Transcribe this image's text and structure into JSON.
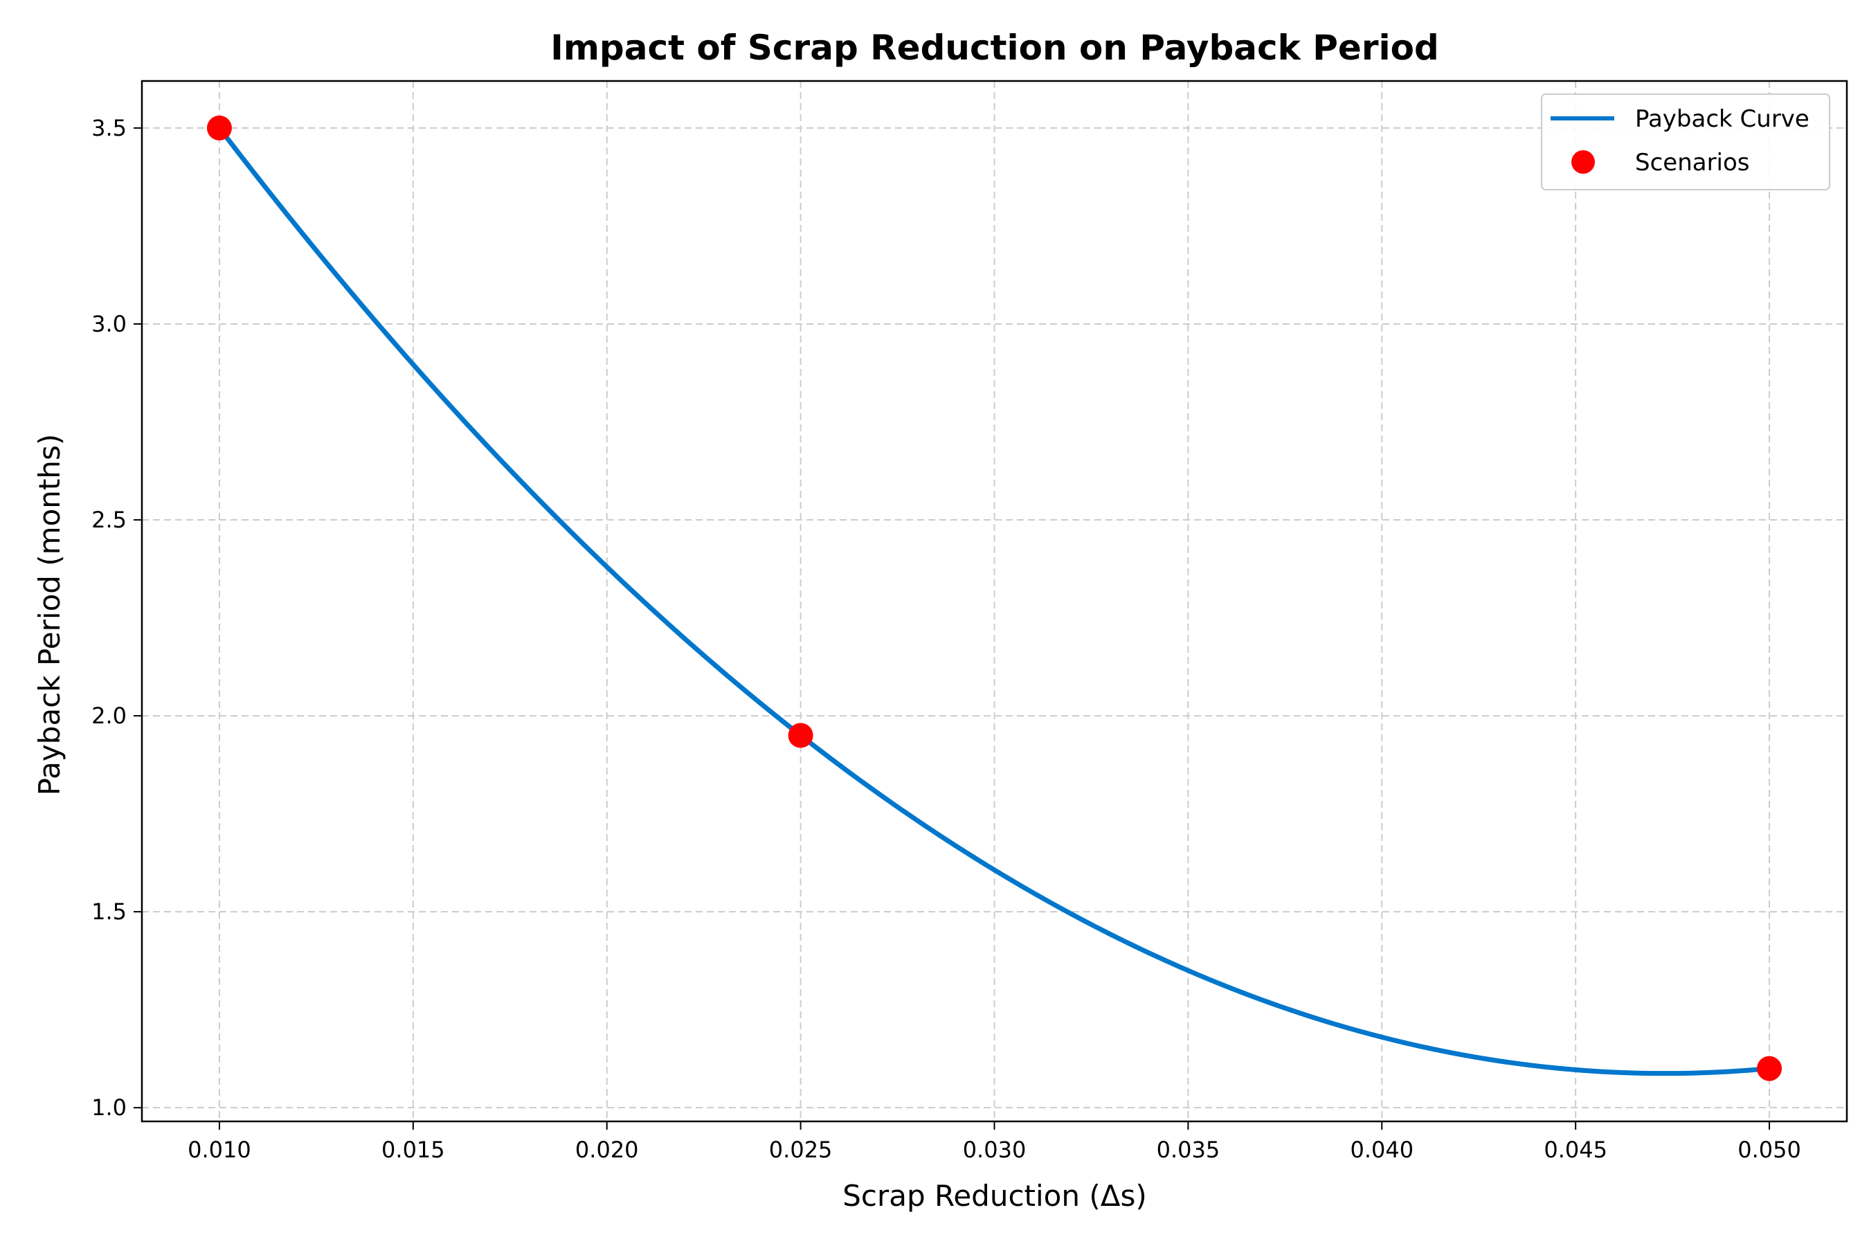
{
  "chart_data": {
    "type": "line",
    "title": "Impact of Scrap Reduction on Payback Period",
    "xlabel": "Scrap Reduction (Δs)",
    "ylabel": "Payback Period (months)",
    "xlim": [
      0.008,
      0.052
    ],
    "ylim": [
      0.965,
      3.62
    ],
    "xticks": [
      0.01,
      0.015,
      0.02,
      0.025,
      0.03,
      0.035,
      0.04,
      0.045,
      0.05
    ],
    "xtick_labels": [
      "0.010",
      "0.015",
      "0.020",
      "0.025",
      "0.030",
      "0.035",
      "0.040",
      "0.045",
      "0.050"
    ],
    "yticks": [
      1.0,
      1.5,
      2.0,
      2.5,
      3.0,
      3.5
    ],
    "ytick_labels": [
      "1.0",
      "1.5",
      "2.0",
      "2.5",
      "3.0",
      "3.5"
    ],
    "grid": true,
    "legend_position": "top-right",
    "series": [
      {
        "name": "Payback Curve",
        "kind": "line",
        "color": "#0077cc",
        "x": [
          0.01,
          0.025,
          0.05
        ],
        "y": [
          3.5,
          1.95,
          1.1
        ],
        "interpolation": "quadratic"
      },
      {
        "name": "Scenarios",
        "kind": "scatter",
        "color": "#ff0000",
        "x": [
          0.01,
          0.025,
          0.05
        ],
        "y": [
          3.5,
          1.95,
          1.1
        ]
      }
    ]
  }
}
